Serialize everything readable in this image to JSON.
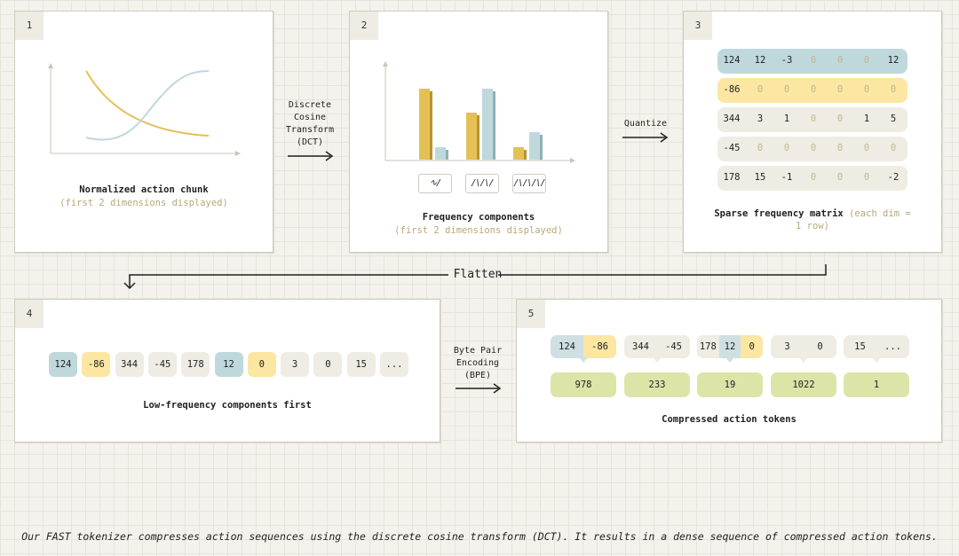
{
  "panels": {
    "p1": {
      "number": "1",
      "title": "Normalized action chunk",
      "subtitle": "(first 2 dimensions displayed)"
    },
    "p2": {
      "number": "2",
      "title": "Frequency components",
      "subtitle": "(first 2 dimensions displayed)",
      "bars": [
        {
          "group": 1,
          "series": "dim1",
          "value": 1.0
        },
        {
          "group": 1,
          "series": "dim2",
          "value": 0.17
        },
        {
          "group": 2,
          "series": "dim1",
          "value": 0.66
        },
        {
          "group": 2,
          "series": "dim2",
          "value": 1.0
        },
        {
          "group": 3,
          "series": "dim1",
          "value": 0.17
        },
        {
          "group": 3,
          "series": "dim2",
          "value": 0.39
        }
      ],
      "frequency_icons": [
        "low-frequency-wave-icon",
        "mid-frequency-wave-icon",
        "high-frequency-wave-icon"
      ]
    },
    "p3": {
      "number": "3",
      "title": "Sparse frequency matrix",
      "subtitle": "(each dim = 1 row)",
      "matrix": [
        [
          "124",
          "12",
          "-3",
          "0",
          "0",
          "0",
          "12"
        ],
        [
          "-86",
          "0",
          "0",
          "0",
          "0",
          "0",
          "0"
        ],
        [
          "344",
          "3",
          "1",
          "0",
          "0",
          "1",
          "5"
        ],
        [
          "-45",
          "0",
          "0",
          "0",
          "0",
          "0",
          "0"
        ],
        [
          "178",
          "15",
          "-1",
          "0",
          "0",
          "0",
          "-2"
        ]
      ]
    },
    "p4": {
      "number": "4",
      "title": "Low-frequency components first",
      "sequence": [
        "124",
        "-86",
        "344",
        "-45",
        "178",
        "12",
        "0",
        "3",
        "0",
        "15",
        "..."
      ]
    },
    "p5": {
      "number": "5",
      "title": "Compressed action tokens",
      "groups": [
        [
          "124",
          "-86"
        ],
        [
          "344",
          "-45"
        ],
        [
          "178",
          "12",
          "0"
        ],
        [
          "3",
          "0"
        ],
        [
          "15",
          "..."
        ]
      ],
      "tokens": [
        "978",
        "233",
        "19",
        "1022",
        "1"
      ]
    }
  },
  "steps": {
    "dct": "Discrete\nCosine\nTransform\n(DCT)",
    "quantize": "Quantize",
    "flatten": "Flatten",
    "bpe": "Byte Pair\nEncoding\n(BPE)"
  },
  "caption": "Our FAST tokenizer compresses action sequences using the discrete cosine transform (DCT). It results in a dense sequence of compressed action tokens.",
  "colors": {
    "yellow": "#e3c157",
    "yellow_light": "#fbe6a2",
    "blue": "#bfd8dc",
    "blue_light": "#cfe0e3",
    "neutral": "#efece4",
    "token_green": "#dde4a8",
    "zero_text": "#c2b892",
    "subtitle": "#b8a878"
  }
}
